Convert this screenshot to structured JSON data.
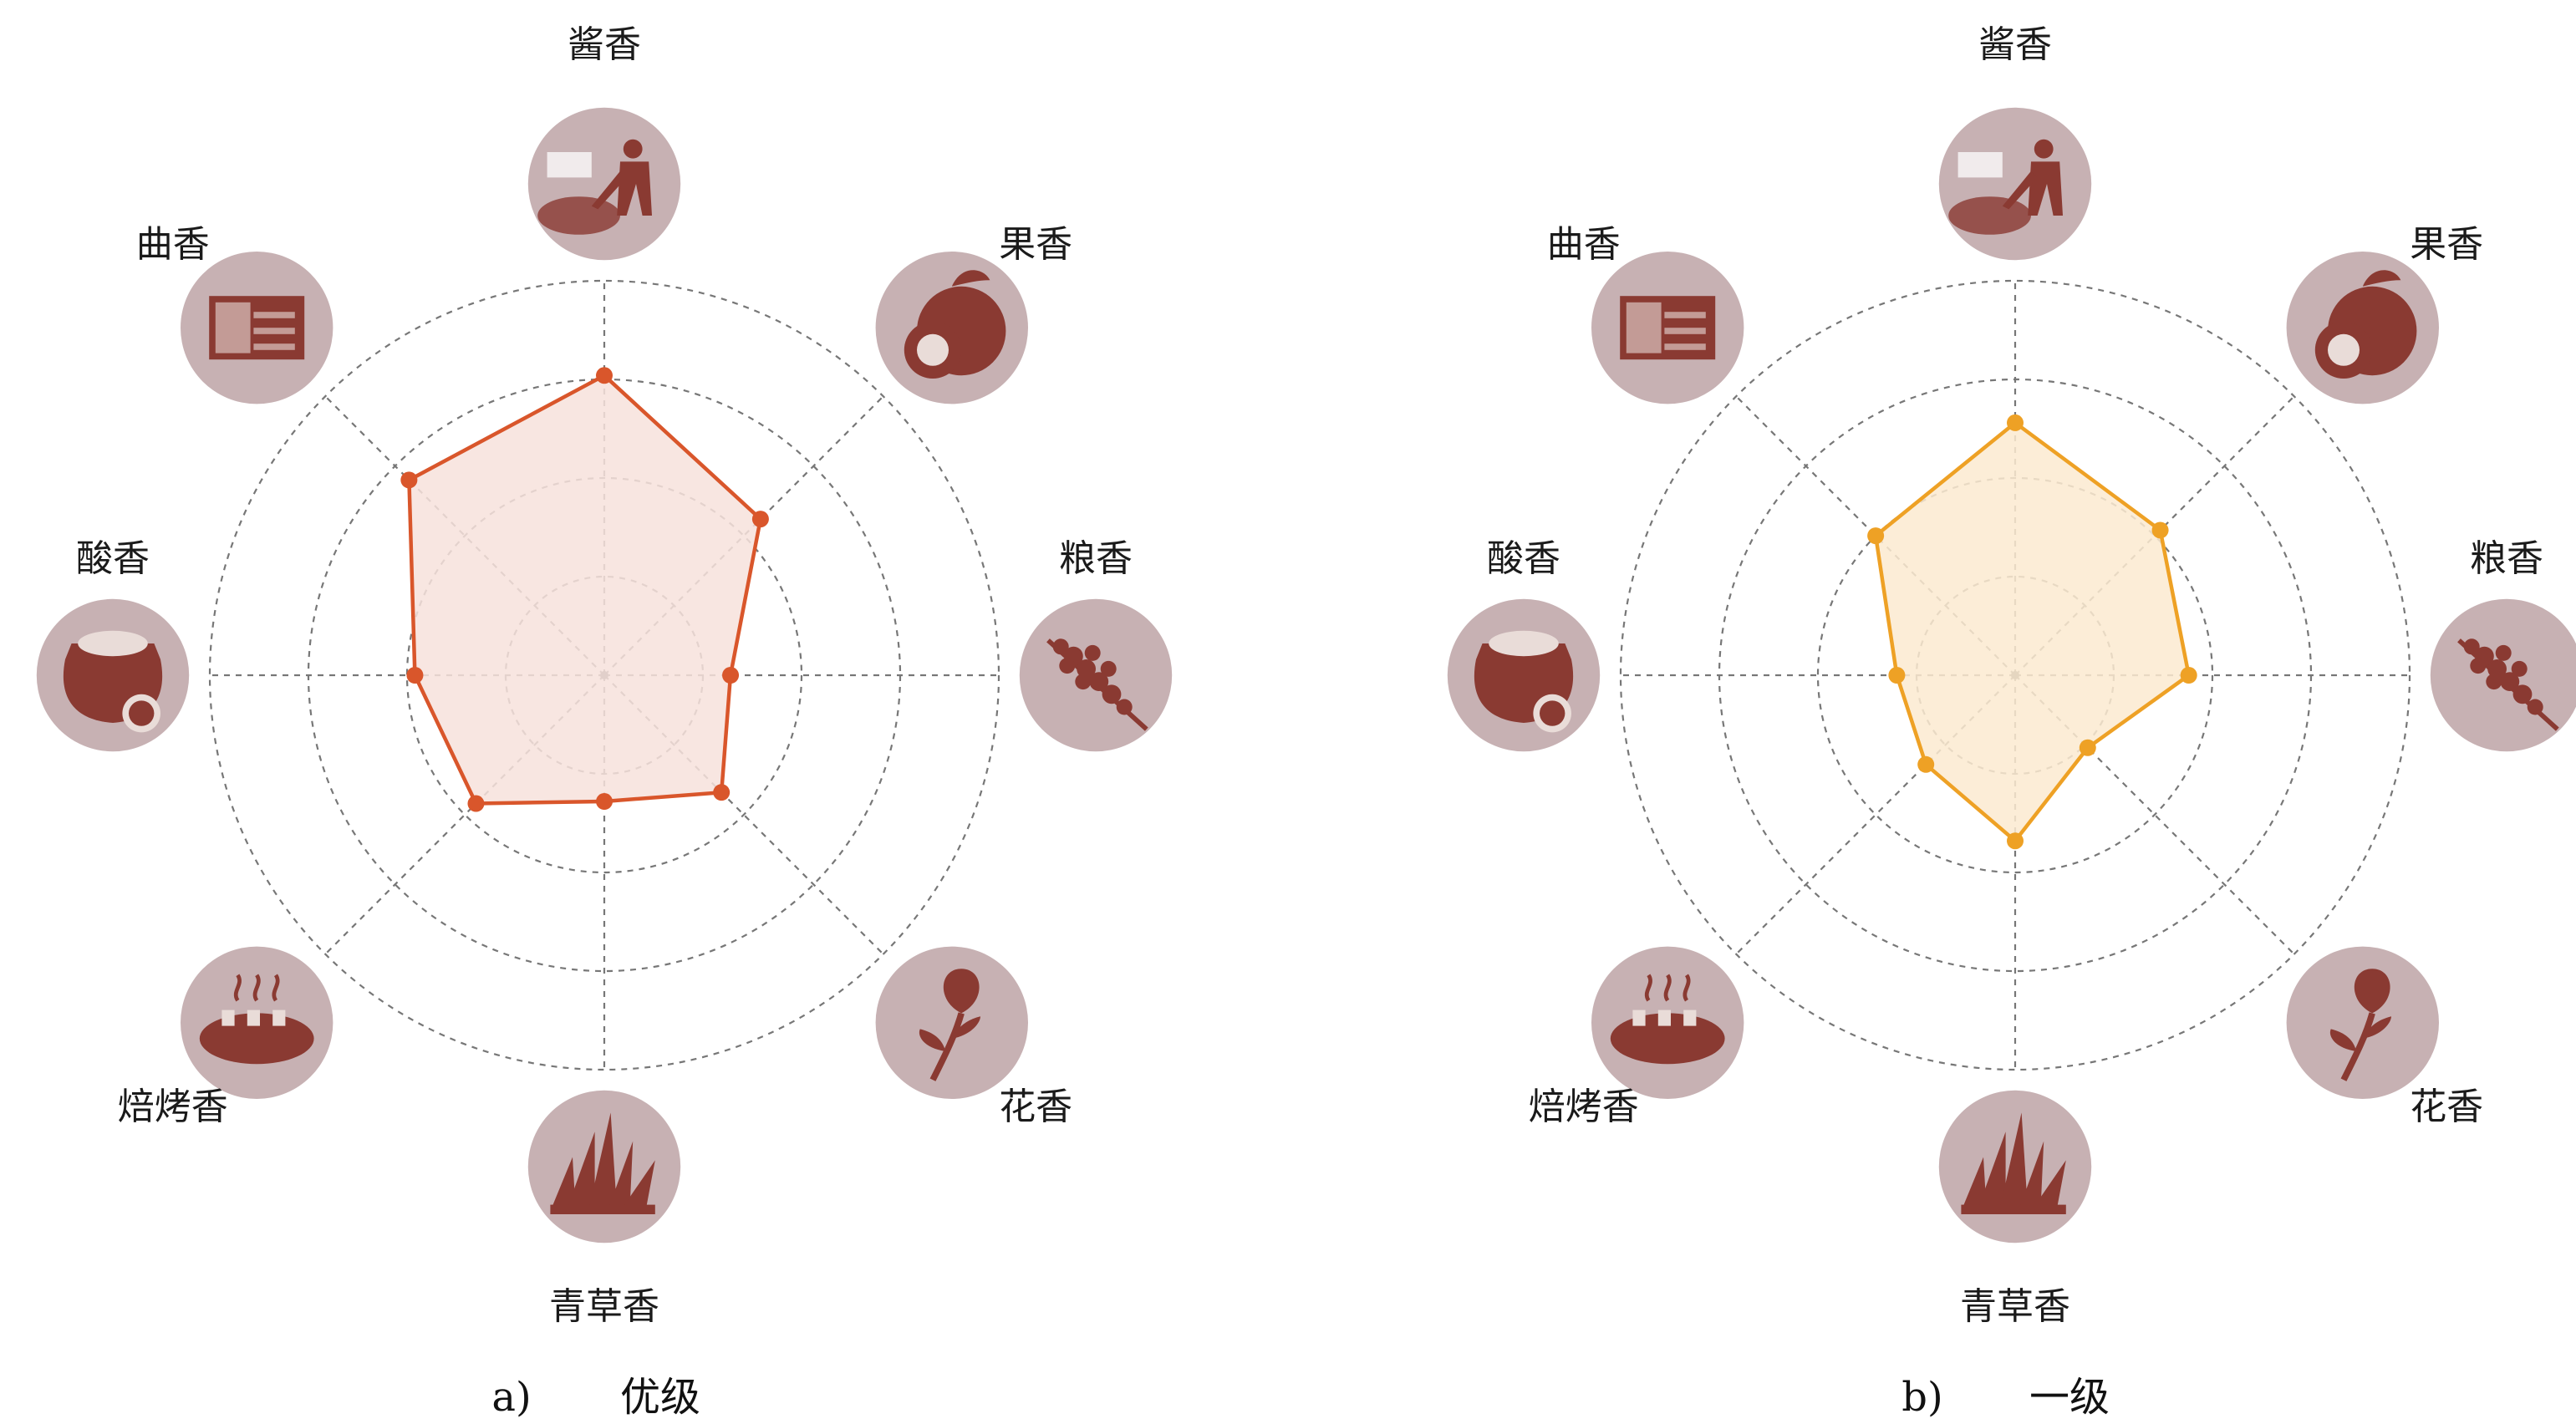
{
  "colors": {
    "panel_a": "#d9562b",
    "panel_a_fill": "#f7e2dc",
    "panel_b": "#eea125",
    "panel_b_fill": "#fbead0",
    "grid": "#777777",
    "icon_background": "#c7b1b3",
    "icon_ink": "#8a3a32"
  },
  "icons": [
    "person-shoveling-grain-icon",
    "fruit-icon",
    "grain-spike-icon",
    "flower-icon",
    "grass-icon",
    "baked-bread-icon",
    "fermentation-jar-icon",
    "qu-block-icon"
  ],
  "chart_data": [
    {
      "type": "radar",
      "panel": "a",
      "caption_letter": "a)",
      "caption_text": "优级",
      "axes": [
        "酱香",
        "果香",
        "粮香",
        "花香",
        "青草香",
        "焙烤香",
        "酸香",
        "曲香"
      ],
      "rings": 4,
      "range": [
        0,
        5
      ],
      "grid": true,
      "values": [
        3.8,
        2.8,
        1.6,
        2.1,
        1.6,
        2.3,
        2.4,
        3.5
      ],
      "color": "#d9562b"
    },
    {
      "type": "radar",
      "panel": "b",
      "caption_letter": "b)",
      "caption_text": "一级",
      "axes": [
        "酱香",
        "果香",
        "粮香",
        "花香",
        "青草香",
        "焙烤香",
        "酸香",
        "曲香"
      ],
      "rings": 4,
      "range": [
        0,
        5
      ],
      "grid": true,
      "values": [
        3.2,
        2.6,
        2.2,
        1.3,
        2.1,
        1.6,
        1.5,
        2.5
      ],
      "color": "#eea125"
    }
  ]
}
